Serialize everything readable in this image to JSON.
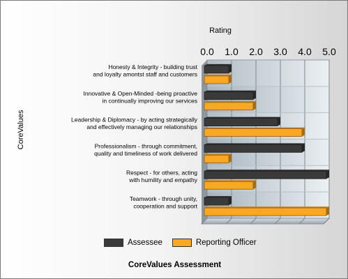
{
  "chart_data": {
    "type": "bar",
    "orientation": "horizontal",
    "title": "CoreValues Assessment",
    "xlabel": "Rating",
    "ylabel": "CoreValues",
    "xlim": [
      0,
      5
    ],
    "xticks": [
      "0.0",
      "1.0",
      "2.0",
      "3.0",
      "4.0",
      "5.0"
    ],
    "grid": true,
    "legend_position": "bottom",
    "categories": [
      [
        "Honesty & Integrity - building  trust",
        "and loyalty amontst staff and customers"
      ],
      [
        "Innovative & Open-Minded -being  proactive",
        "in continually improving our services"
      ],
      [
        "Leadership & Diplomacy - by acting strategically",
        "and effectively managing our relationships"
      ],
      [
        "Professionalism - through  commitment,",
        "quality and timeliness of work delivered"
      ],
      [
        "Respect - for others, acting",
        "with humility and empathy"
      ],
      [
        "Teamwork - through  unity,",
        "cooperation and support"
      ]
    ],
    "series": [
      {
        "name": "Assessee",
        "color": "#3a3a3a",
        "values": [
          1,
          2,
          3,
          4,
          5,
          1
        ]
      },
      {
        "name": "Reporting Officer",
        "color": "#f9a825",
        "values": [
          1,
          2,
          4,
          1,
          2,
          5
        ]
      }
    ]
  }
}
